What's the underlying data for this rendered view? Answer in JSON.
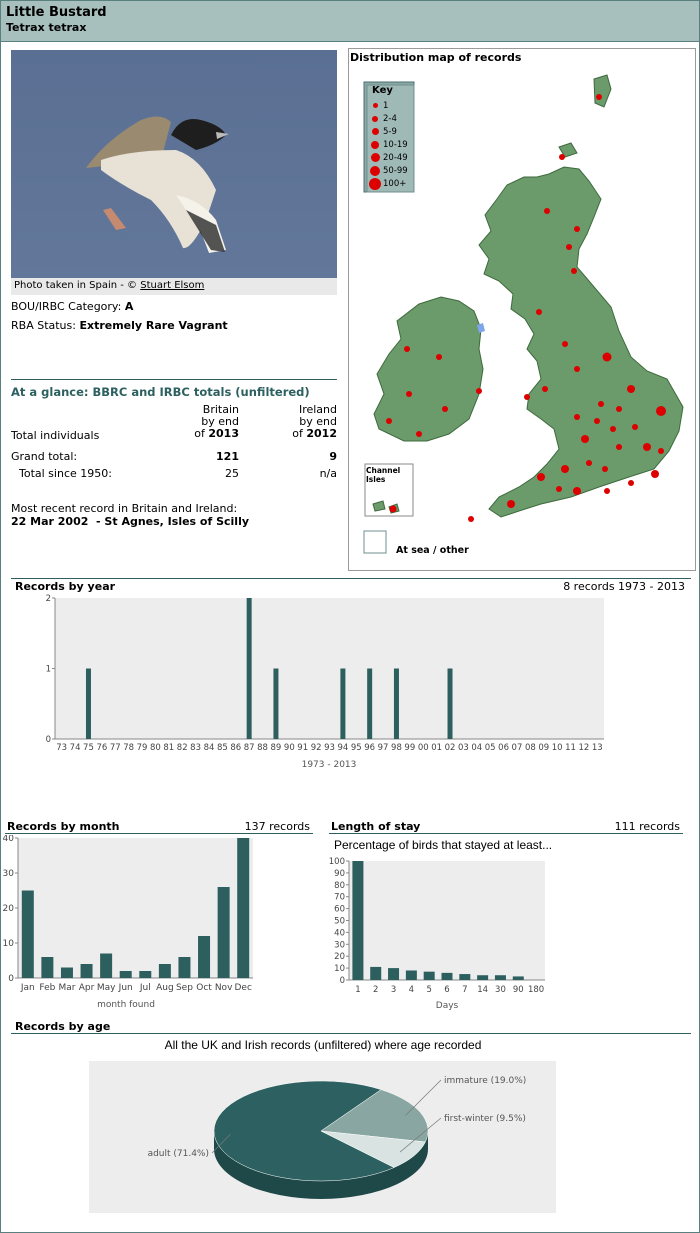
{
  "header": {
    "common_name": "Little Bustard",
    "latin_name": "Tetrax tetrax"
  },
  "photo": {
    "caption_prefix": "Photo taken in Spain - © ",
    "credit": "Stuart Elsom"
  },
  "status": {
    "category_label": "BOU/IRBC Category:",
    "category_value": "A",
    "rba_label": "RBA Status:",
    "rba_value": "Extremely Rare Vagrant"
  },
  "glance": {
    "title": "At a glance: BBRC and IRBC totals (unfiltered)",
    "britain_head": [
      "Britain",
      "by end"
    ],
    "britain_year_prefix": "of ",
    "britain_year": "2013",
    "ireland_head": [
      "Ireland",
      "by end"
    ],
    "ireland_year_prefix": "of ",
    "ireland_year": "2012",
    "row_total_label": "Total individuals",
    "grand_label": "Grand total:",
    "grand_britain": "121",
    "grand_ireland": "9",
    "since_label": "Total since 1950:",
    "since_britain": "25",
    "since_ireland": "n/a",
    "recent_label": "Most recent record in Britain and Ireland:",
    "recent_value": "22 Mar 2002  - St Agnes, Isles of Scilly"
  },
  "map": {
    "title": "Distribution map of records",
    "key_title": "Key",
    "key_items": [
      "1",
      "2-4",
      "5-9",
      "10-19",
      "20-49",
      "50-99",
      "100+"
    ],
    "channel_label": "Channel Isles",
    "sea_label": "At sea / other",
    "dot_color": "#dd0000",
    "land_color": "#6b9a6b"
  },
  "year_chart": {
    "title": "Records by year",
    "summary": "8 records 1973 - 2013",
    "xlabel": "1973 - 2013"
  },
  "month_chart": {
    "title": "Records by month",
    "summary": "137 records",
    "xlabel": "month found"
  },
  "stay_chart": {
    "title": "Length of stay",
    "summary": "111 records",
    "subtitle": "Percentage of birds that stayed at least...",
    "xlabel": "Days"
  },
  "age_chart": {
    "title": "Records by age",
    "subtitle": "All the UK and Irish records (unfiltered) where age recorded"
  },
  "chart_data": [
    {
      "type": "bar",
      "name": "year",
      "categories": [
        "73",
        "74",
        "75",
        "76",
        "77",
        "78",
        "79",
        "80",
        "81",
        "82",
        "83",
        "84",
        "85",
        "86",
        "87",
        "88",
        "89",
        "90",
        "91",
        "92",
        "93",
        "94",
        "95",
        "96",
        "97",
        "98",
        "99",
        "00",
        "01",
        "02",
        "03",
        "04",
        "05",
        "06",
        "07",
        "08",
        "09",
        "10",
        "11",
        "12",
        "13"
      ],
      "values": [
        0,
        0,
        1,
        0,
        0,
        0,
        0,
        0,
        0,
        0,
        0,
        0,
        0,
        0,
        2,
        0,
        1,
        0,
        0,
        0,
        0,
        1,
        0,
        1,
        0,
        1,
        0,
        0,
        0,
        1,
        0,
        0,
        0,
        0,
        0,
        0,
        0,
        0,
        0,
        0,
        0
      ],
      "ylim": [
        0,
        2
      ],
      "yticks": [
        0,
        1,
        2
      ],
      "color": "#2d5f5f"
    },
    {
      "type": "bar",
      "name": "month",
      "categories": [
        "Jan",
        "Feb",
        "Mar",
        "Apr",
        "May",
        "Jun",
        "Jul",
        "Aug",
        "Sep",
        "Oct",
        "Nov",
        "Dec"
      ],
      "values": [
        25,
        6,
        3,
        4,
        7,
        2,
        2,
        4,
        6,
        12,
        26,
        40
      ],
      "ylim": [
        0,
        40
      ],
      "yticks": [
        0,
        10,
        20,
        30,
        40
      ],
      "color": "#2d5f5f"
    },
    {
      "type": "bar",
      "name": "stay",
      "categories": [
        "1",
        "2",
        "3",
        "4",
        "5",
        "6",
        "7",
        "14",
        "30",
        "90",
        "180"
      ],
      "values": [
        100,
        11,
        10,
        8,
        7,
        6,
        5,
        4,
        4,
        3,
        0
      ],
      "ylim": [
        0,
        100
      ],
      "yticks": [
        0,
        10,
        20,
        30,
        40,
        50,
        60,
        70,
        80,
        90,
        100
      ],
      "color": "#2d5f5f"
    },
    {
      "type": "pie",
      "name": "age",
      "labels": [
        "adult (71.4%)",
        "immature (19.0%)",
        "first-winter (9.5%)"
      ],
      "values": [
        71.4,
        19.0,
        9.5
      ],
      "colors": [
        "#2d6060",
        "#89a6a3",
        "#d9e3e2"
      ]
    }
  ]
}
